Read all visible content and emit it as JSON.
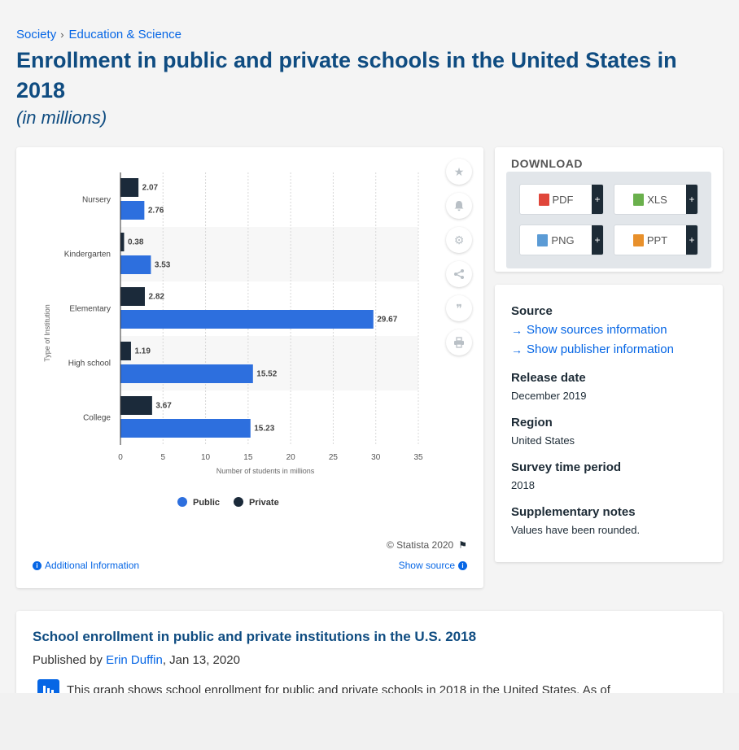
{
  "breadcrumb": {
    "items": [
      "Society",
      "Education & Science"
    ],
    "separator": "›"
  },
  "title": "Enrollment in public and private schools in the United States in 2018",
  "subtitle": "(in millions)",
  "chart_data": {
    "type": "bar",
    "orientation": "horizontal",
    "categories": [
      "Nursery",
      "Kindergarten",
      "Elementary",
      "High school",
      "College"
    ],
    "series": [
      {
        "name": "Private",
        "color": "#1b2a3a",
        "values": [
          2.07,
          0.38,
          2.82,
          1.19,
          3.67
        ]
      },
      {
        "name": "Public",
        "color": "#2d6fde",
        "values": [
          2.76,
          3.53,
          29.67,
          15.52,
          15.23
        ]
      }
    ],
    "xlabel": "Number of students in millions",
    "ylabel": "Type of Institution",
    "xlim": [
      0,
      35
    ],
    "xticks": [
      0,
      5,
      10,
      15,
      20,
      25,
      30,
      35
    ],
    "legend": {
      "position": "bottom",
      "items": [
        "Public",
        "Private"
      ]
    },
    "grid": true
  },
  "chart_footer": {
    "copyright": "© Statista 2020",
    "additional_info": "Additional Information",
    "show_source": "Show source"
  },
  "tools": [
    "star-icon",
    "bell-icon",
    "gear-icon",
    "share-icon",
    "quote-icon",
    "print-icon"
  ],
  "download": {
    "title": "DOWNLOAD",
    "buttons": [
      {
        "label": "PDF",
        "color": "#e0463a"
      },
      {
        "label": "XLS",
        "color": "#6ab04c"
      },
      {
        "label": "PNG",
        "color": "#5b9bd5"
      },
      {
        "label": "PPT",
        "color": "#e8902b"
      }
    ],
    "plus": "+"
  },
  "info": {
    "source_label": "Source",
    "show_sources": "Show sources information",
    "show_publisher": "Show publisher information",
    "release_label": "Release date",
    "release_value": "December 2019",
    "region_label": "Region",
    "region_value": "United States",
    "survey_label": "Survey time period",
    "survey_value": "2018",
    "notes_label": "Supplementary notes",
    "notes_value": "Values have been rounded."
  },
  "description": {
    "title": "School enrollment in public and private institutions in the U.S. 2018",
    "published_by": "Published by",
    "author": "Erin Duffin",
    "date": ", Jan 13, 2020",
    "text": "This graph shows school enrollment for public and private schools in 2018 in the United States. As of"
  }
}
